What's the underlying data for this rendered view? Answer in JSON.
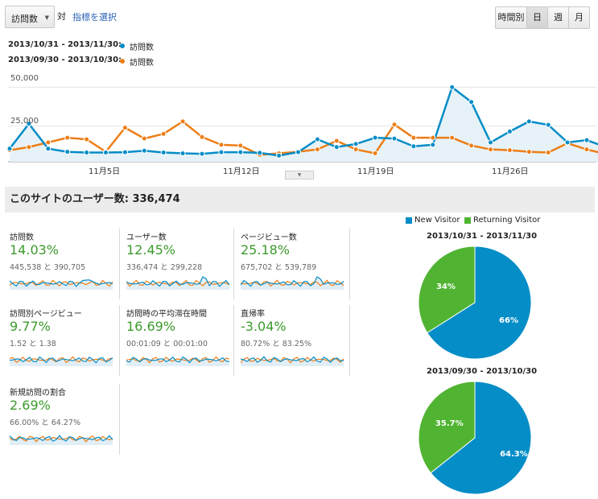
{
  "toolbar": {
    "metric_select": "訪問数",
    "vs_label": "対",
    "select_metric_link": "指標を選択",
    "granularity": [
      "時間別",
      "日",
      "週",
      "月"
    ],
    "selected_granularity": "日"
  },
  "legend": {
    "current_range": "2013/10/31 - 2013/11/30:",
    "previous_range": "2013/09/30 - 2013/10/30:",
    "series_label": "訪問数"
  },
  "colors": {
    "current": "#058dc7",
    "previous": "#ed7e17",
    "new_visitor": "#058dc7",
    "returning_visitor": "#50b432",
    "positive": "#3d9a2d"
  },
  "chart_data": {
    "type": "line",
    "x_ticks": [
      "11月5日",
      "11月12日",
      "11月19日",
      "11月26日"
    ],
    "y_ticks": [
      "50,000",
      "25,000"
    ],
    "ylim": [
      0,
      60000
    ],
    "grid": true,
    "series": [
      {
        "name": "2013/10/31 - 2013/11/30",
        "values": [
          10500,
          26500,
          10500,
          8500,
          8000,
          8000,
          8200,
          9200,
          8000,
          7500,
          7200,
          8200,
          8200,
          7800,
          6000,
          8300,
          16500,
          11500,
          13500,
          17500,
          17000,
          12000,
          13000,
          50000,
          40500,
          14500,
          21500,
          28000,
          25800,
          14500,
          16000,
          11500
        ]
      },
      {
        "name": "2013/09/30 - 2013/10/30",
        "values": [
          9500,
          11500,
          14500,
          17500,
          16500,
          8500,
          24000,
          17000,
          20000,
          28000,
          18000,
          13000,
          12500,
          6500,
          7500,
          8500,
          10000,
          15500,
          10000,
          7500,
          26000,
          17500,
          17500,
          17500,
          12500,
          10000,
          9500,
          8500,
          8000,
          14000,
          10000,
          7000
        ]
      }
    ]
  },
  "summary": {
    "title": "このサイトのユーザー数: 336,474"
  },
  "metrics": [
    {
      "name": "訪問数",
      "change": "14.03%",
      "compare": "445,538 と 390,705"
    },
    {
      "name": "ユーザー数",
      "change": "12.45%",
      "compare": "336,474 と 299,228"
    },
    {
      "name": "ページビュー数",
      "change": "25.18%",
      "compare": "675,702 と 539,789"
    },
    {
      "name": "訪問別ページビュー",
      "change": "9.77%",
      "compare": "1.52 と 1.38"
    },
    {
      "name": "訪問時の平均滞在時間",
      "change": "16.69%",
      "compare": "00:01:09 と 00:01:00"
    },
    {
      "name": "直帰率",
      "change": "-3.04%",
      "compare": "80.72% と 83.25%"
    },
    {
      "name": "新規訪問の割合",
      "change": "2.69%",
      "compare": "66.00% と 64.27%"
    }
  ],
  "pie_legend": {
    "new_visitor": "New Visitor",
    "returning_visitor": "Returning Visitor"
  },
  "pies": [
    {
      "title": "2013/10/31 - 2013/11/30",
      "new_label": "66%",
      "returning_label": "34%",
      "new_fraction": 0.66
    },
    {
      "title": "2013/09/30 - 2013/10/30",
      "new_label": "64.3%",
      "returning_label": "35.7%",
      "new_fraction": 0.643
    }
  ]
}
